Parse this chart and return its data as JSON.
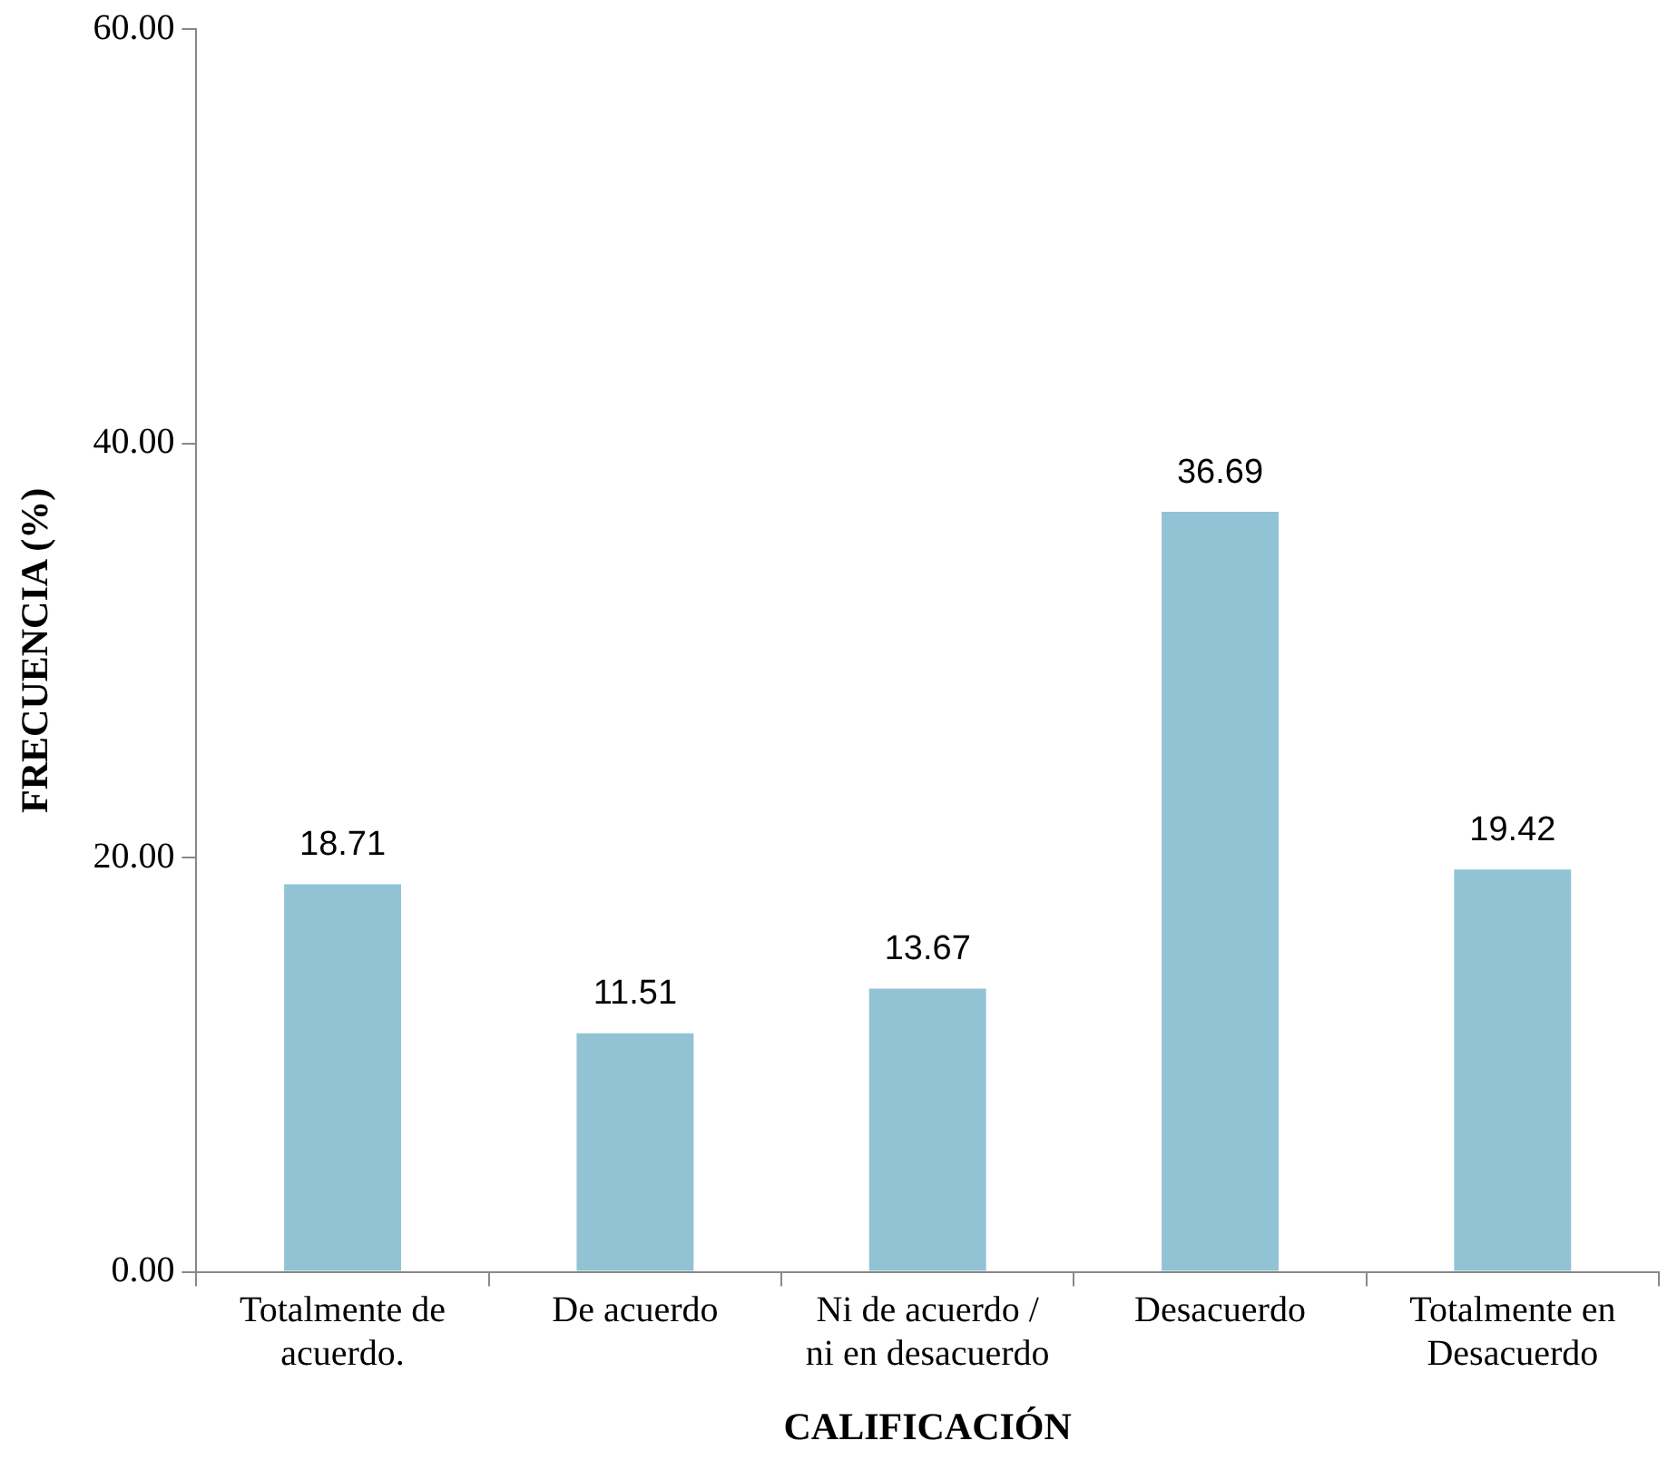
{
  "chart_data": {
    "type": "bar",
    "xlabel": "CALIFICACIÓN",
    "ylabel": "FRECUENCIA (%)",
    "categories": [
      "Totalmente de acuerdo.",
      "De acuerdo",
      "Ni de acuerdo / ni en desacuerdo",
      "Desacuerdo",
      "Totalmente en Desacuerdo"
    ],
    "values": [
      18.71,
      11.51,
      13.67,
      36.69,
      19.42
    ],
    "color": "#92c3d5",
    "ylim": [
      0,
      60
    ],
    "yticks": [
      {
        "value": 0,
        "label": "0.00"
      },
      {
        "value": 20,
        "label": "20.00"
      },
      {
        "value": 40,
        "label": "40.00"
      },
      {
        "value": 60,
        "label": "60.00"
      }
    ],
    "grid": false,
    "legend": false,
    "data_labels": true
  }
}
